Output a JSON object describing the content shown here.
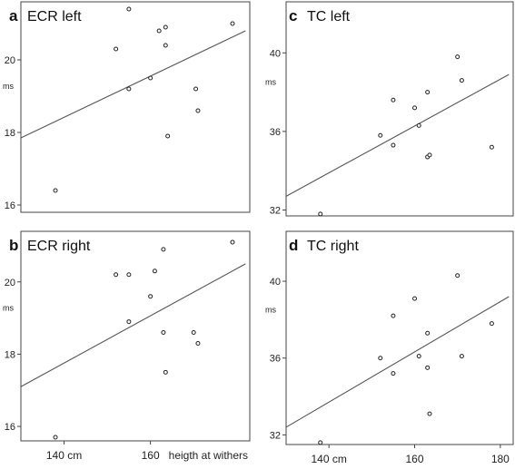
{
  "chart_data": [
    {
      "type": "scatter",
      "panel_letter": "a",
      "title": "ECR left",
      "ylabel": "ms",
      "xlim": [
        130,
        183
      ],
      "ylim": [
        15.8,
        21.6
      ],
      "yticks": [
        16,
        18,
        20
      ],
      "xticks": [],
      "points": [
        {
          "x": 138,
          "y": 16.4
        },
        {
          "x": 152,
          "y": 20.3
        },
        {
          "x": 155,
          "y": 21.4
        },
        {
          "x": 155,
          "y": 19.2
        },
        {
          "x": 160,
          "y": 19.5
        },
        {
          "x": 162,
          "y": 20.8
        },
        {
          "x": 163.5,
          "y": 20.9
        },
        {
          "x": 163.5,
          "y": 20.4
        },
        {
          "x": 164,
          "y": 17.9
        },
        {
          "x": 170.5,
          "y": 19.2
        },
        {
          "x": 171,
          "y": 18.6
        },
        {
          "x": 179,
          "y": 21.0
        }
      ],
      "trendline": [
        {
          "x": 130,
          "y": 17.85
        },
        {
          "x": 182,
          "y": 20.8
        }
      ]
    },
    {
      "type": "scatter",
      "panel_letter": "b",
      "title": "ECR right",
      "ylabel": "ms",
      "xlim": [
        130,
        183
      ],
      "ylim": [
        15.6,
        21.4
      ],
      "yticks": [
        16,
        18,
        20
      ],
      "xticks": [
        140,
        160
      ],
      "xtick_labels": [
        "140 cm",
        "160"
      ],
      "xlabel": "heigth at withers",
      "points": [
        {
          "x": 138,
          "y": 15.7
        },
        {
          "x": 152,
          "y": 20.2
        },
        {
          "x": 155,
          "y": 20.2
        },
        {
          "x": 155,
          "y": 18.9
        },
        {
          "x": 160,
          "y": 19.6
        },
        {
          "x": 161,
          "y": 20.3
        },
        {
          "x": 163,
          "y": 20.9
        },
        {
          "x": 163,
          "y": 18.6
        },
        {
          "x": 163.5,
          "y": 17.5
        },
        {
          "x": 170,
          "y": 18.6
        },
        {
          "x": 171,
          "y": 18.3
        },
        {
          "x": 179,
          "y": 21.1
        }
      ],
      "trendline": [
        {
          "x": 130,
          "y": 17.1
        },
        {
          "x": 182,
          "y": 20.5
        }
      ]
    },
    {
      "type": "scatter",
      "panel_letter": "c",
      "title": "TC left",
      "ylabel": "ms",
      "xlim": [
        130,
        183
      ],
      "ylim": [
        31.7,
        42.6
      ],
      "yticks": [
        32,
        36,
        40
      ],
      "xticks": [],
      "points": [
        {
          "x": 138,
          "y": 31.8
        },
        {
          "x": 152,
          "y": 35.8
        },
        {
          "x": 155,
          "y": 37.6
        },
        {
          "x": 155,
          "y": 35.3
        },
        {
          "x": 160,
          "y": 37.2
        },
        {
          "x": 161,
          "y": 36.3
        },
        {
          "x": 163,
          "y": 38.0
        },
        {
          "x": 163,
          "y": 34.7
        },
        {
          "x": 163.5,
          "y": 34.8
        },
        {
          "x": 170,
          "y": 39.8
        },
        {
          "x": 171,
          "y": 38.6
        },
        {
          "x": 178,
          "y": 35.2
        }
      ],
      "trendline": [
        {
          "x": 130,
          "y": 32.7
        },
        {
          "x": 182,
          "y": 38.9
        }
      ]
    },
    {
      "type": "scatter",
      "panel_letter": "d",
      "title": "TC right",
      "ylabel": "ms",
      "xlim": [
        130,
        183
      ],
      "ylim": [
        31.5,
        42.6
      ],
      "yticks": [
        32,
        36,
        40
      ],
      "xticks": [
        140,
        160,
        180
      ],
      "xtick_labels": [
        "140 cm",
        "160",
        "180"
      ],
      "points": [
        {
          "x": 138,
          "y": 31.6
        },
        {
          "x": 152,
          "y": 36.0
        },
        {
          "x": 155,
          "y": 38.2
        },
        {
          "x": 155,
          "y": 35.2
        },
        {
          "x": 160,
          "y": 39.1
        },
        {
          "x": 161,
          "y": 36.1
        },
        {
          "x": 163,
          "y": 37.3
        },
        {
          "x": 163,
          "y": 35.5
        },
        {
          "x": 163.5,
          "y": 33.1
        },
        {
          "x": 170,
          "y": 40.3
        },
        {
          "x": 171,
          "y": 36.1
        },
        {
          "x": 178,
          "y": 37.8
        }
      ],
      "trendline": [
        {
          "x": 130,
          "y": 32.4
        },
        {
          "x": 182,
          "y": 39.2
        }
      ]
    }
  ]
}
